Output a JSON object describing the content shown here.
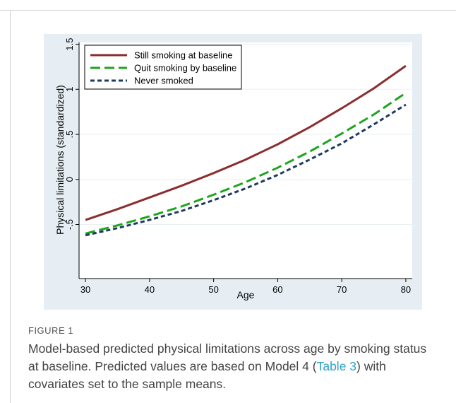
{
  "chart_data": {
    "type": "line",
    "xlabel": "Age",
    "ylabel": "Physical limitations (standardized)",
    "xlim": [
      29,
      81
    ],
    "ylim": [
      -1.1,
      1.52
    ],
    "xticks": [
      30,
      40,
      50,
      60,
      70,
      80
    ],
    "yticks": [
      -0.5,
      0,
      0.5,
      1,
      1.5
    ],
    "ytick_labels": [
      "-.5",
      "0",
      ".5",
      "1",
      "1.5"
    ],
    "grid": true,
    "legend_position": "top-left",
    "x": [
      30,
      35,
      40,
      45,
      50,
      55,
      60,
      65,
      70,
      75,
      80
    ],
    "series": [
      {
        "name": "Still smoking at baseline",
        "color": "#8b2e2e",
        "style": "solid",
        "values": [
          -0.45,
          -0.33,
          -0.2,
          -0.07,
          0.07,
          0.22,
          0.39,
          0.58,
          0.79,
          1.01,
          1.26
        ]
      },
      {
        "name": "Quit smoking by baseline",
        "color": "#1ea51e",
        "style": "longdash",
        "values": [
          -0.6,
          -0.51,
          -0.41,
          -0.3,
          -0.17,
          -0.03,
          0.13,
          0.31,
          0.51,
          0.72,
          0.96
        ]
      },
      {
        "name": "Never smoked",
        "color": "#1f3a5f",
        "style": "shortdash",
        "values": [
          -0.62,
          -0.54,
          -0.45,
          -0.35,
          -0.23,
          -0.1,
          0.05,
          0.22,
          0.4,
          0.61,
          0.83
        ]
      }
    ]
  },
  "figure": {
    "label": "FIGURE 1",
    "caption_before_link": "Model-based predicted physical limitations across age by smoking status at baseline. Predicted values are based on Model 4 (",
    "caption_link": "Table 3",
    "caption_after_link": ") with covariates set to the sample means."
  }
}
